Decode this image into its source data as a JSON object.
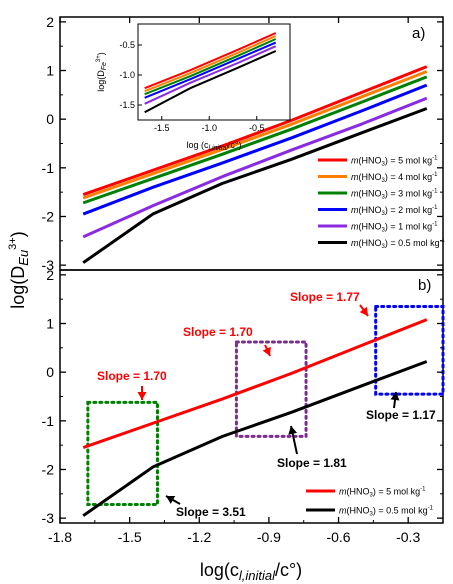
{
  "chart_data": [
    {
      "panel": "a)",
      "type": "line",
      "xlim": [
        -1.8,
        -0.15
      ],
      "ylim": [
        -3.1,
        2.1
      ],
      "yticks": [
        "-3",
        "-2",
        "-1",
        "0",
        "1",
        "2"
      ],
      "series": [
        {
          "name": "m(HNO3) = 5 mol kg-1",
          "color": "#ff0000",
          "x": [
            -1.7,
            -1.4,
            -1.1,
            -0.8,
            -0.5,
            -0.22
          ],
          "y": [
            -1.55,
            -1.05,
            -0.55,
            -0.02,
            0.55,
            1.08
          ]
        },
        {
          "name": "m(HNO3) = 4 mol kg-1",
          "color": "#ff7f00",
          "x": [
            -1.7,
            -1.4,
            -1.1,
            -0.8,
            -0.5,
            -0.22
          ],
          "y": [
            -1.62,
            -1.12,
            -0.62,
            -0.1,
            0.46,
            0.98
          ]
        },
        {
          "name": "m(HNO3) = 3 mol kg-1",
          "color": "#008000",
          "x": [
            -1.7,
            -1.4,
            -1.1,
            -0.8,
            -0.5,
            -0.22
          ],
          "y": [
            -1.72,
            -1.22,
            -0.72,
            -0.2,
            0.35,
            0.87
          ]
        },
        {
          "name": "m(HNO3) = 2 mol kg-1",
          "color": "#0000ff",
          "x": [
            -1.7,
            -1.4,
            -1.1,
            -0.8,
            -0.5,
            -0.22
          ],
          "y": [
            -1.95,
            -1.4,
            -0.9,
            -0.38,
            0.17,
            0.7
          ]
        },
        {
          "name": "m(HNO3) = 1 mol kg-1",
          "color": "#8a2be2",
          "x": [
            -1.7,
            -1.4,
            -1.1,
            -0.8,
            -0.5,
            -0.22
          ],
          "y": [
            -2.42,
            -1.78,
            -1.18,
            -0.63,
            -0.1,
            0.43
          ]
        },
        {
          "name": "m(HNO3) = 0.5 mol kg-1",
          "color": "#000000",
          "x": [
            -1.7,
            -1.4,
            -1.1,
            -0.8,
            -0.5,
            -0.22
          ],
          "y": [
            -2.95,
            -1.95,
            -1.32,
            -0.82,
            -0.28,
            0.22
          ]
        }
      ],
      "inset": {
        "xlim": [
          -1.75,
          -0.15
        ],
        "ylim": [
          -1.75,
          -0.15
        ],
        "xticks": [
          "-1.5",
          "-1.0",
          "-0.5"
        ],
        "yticks": [
          "-1.5",
          "-1.0",
          "-0.5"
        ],
        "colors": [
          "#ff0000",
          "#ff7f00",
          "#008000",
          "#0000ff",
          "#8a2be2",
          "#000000"
        ],
        "lines": [
          {
            "x": [
              -1.68,
              -1.2,
              -0.7,
              -0.3
            ],
            "y": [
              -1.22,
              -0.92,
              -0.58,
              -0.3
            ]
          },
          {
            "x": [
              -1.68,
              -1.2,
              -0.7,
              -0.3
            ],
            "y": [
              -1.27,
              -0.97,
              -0.63,
              -0.35
            ]
          },
          {
            "x": [
              -1.68,
              -1.2,
              -0.7,
              -0.3
            ],
            "y": [
              -1.32,
              -1.02,
              -0.68,
              -0.4
            ]
          },
          {
            "x": [
              -1.68,
              -1.2,
              -0.7,
              -0.3
            ],
            "y": [
              -1.38,
              -1.07,
              -0.73,
              -0.46
            ]
          },
          {
            "x": [
              -1.68,
              -1.2,
              -0.7,
              -0.3
            ],
            "y": [
              -1.48,
              -1.13,
              -0.8,
              -0.52
            ]
          },
          {
            "x": [
              -1.68,
              -1.2,
              -0.7,
              -0.3
            ],
            "y": [
              -1.62,
              -1.22,
              -0.88,
              -0.6
            ]
          }
        ]
      }
    },
    {
      "panel": "b)",
      "type": "line",
      "xlim": [
        -1.8,
        -0.15
      ],
      "ylim": [
        -3.1,
        2.1
      ],
      "xticks": [
        "-1.8",
        "-1.5",
        "-1.2",
        "-0.9",
        "-0.6",
        "-0.3"
      ],
      "yticks": [
        "-3",
        "-2",
        "-1",
        "0",
        "1",
        "2"
      ],
      "series": [
        {
          "name": "m(HNO3) = 5 mol kg-1",
          "color": "#ff0000",
          "x": [
            -1.7,
            -1.4,
            -1.1,
            -0.8,
            -0.5,
            -0.22
          ],
          "y": [
            -1.55,
            -1.05,
            -0.55,
            -0.02,
            0.55,
            1.08
          ]
        },
        {
          "name": "m(HNO3) = 0.5 mol kg-1",
          "color": "#000000",
          "x": [
            -1.7,
            -1.4,
            -1.1,
            -0.8,
            -0.5,
            -0.22
          ],
          "y": [
            -2.95,
            -1.95,
            -1.32,
            -0.82,
            -0.28,
            0.22
          ]
        }
      ],
      "annotations": [
        {
          "text": "Slope = 1.77",
          "color": "#ff0000"
        },
        {
          "text": "Slope = 1.70",
          "color": "#ff0000"
        },
        {
          "text": "Slope = 1.70",
          "color": "#ff0000"
        },
        {
          "text": "Slope = 1.17",
          "color": "#000000"
        },
        {
          "text": "Slope = 1.81",
          "color": "#000000"
        },
        {
          "text": "Slope = 3.51",
          "color": "#000000"
        }
      ],
      "boxes": [
        {
          "color": "#008000",
          "x": [
            -1.68,
            -1.38
          ],
          "y": [
            -2.72,
            -0.62
          ]
        },
        {
          "color": "#7b2d8e",
          "x": [
            -1.04,
            -0.74
          ],
          "y": [
            -1.32,
            0.62
          ]
        },
        {
          "color": "#0000ff",
          "x": [
            -0.44,
            -0.15
          ],
          "y": [
            -0.45,
            1.35
          ]
        }
      ]
    }
  ],
  "labels": {
    "panel_a": "a)",
    "panel_b": "b)",
    "y_axis_main": "log(D",
    "y_axis_main_sub": "Eu",
    "y_axis_main_sup": "3+",
    "x_axis_main": "log(c",
    "x_axis_main_sub": "l,initial",
    "x_axis_main_tail": "/c°)",
    "inset_y": "log(D",
    "inset_y_sub": "Fe",
    "inset_y_sup": "3+",
    "inset_x": "log (c",
    "inset_x_sub": "l,initial",
    "inset_x_tail": "/c°)"
  },
  "legend_a": [
    {
      "pre": "m",
      "mid": "(HNO",
      "sub": "3",
      "post": ") = 5 mol kg",
      "sup": "-1",
      "color": "#ff0000"
    },
    {
      "pre": "m",
      "mid": "(HNO",
      "sub": "3",
      "post": ") = 4 mol kg",
      "sup": "-1",
      "color": "#ff7f00"
    },
    {
      "pre": "m",
      "mid": "(HNO",
      "sub": "3",
      "post": ") = 3 mol kg",
      "sup": "-1",
      "color": "#008000"
    },
    {
      "pre": "m",
      "mid": "(HNO",
      "sub": "3",
      "post": ") = 2 mol kg",
      "sup": "-1",
      "color": "#0000ff"
    },
    {
      "pre": "m",
      "mid": "(HNO",
      "sub": "3",
      "post": ") = 1 mol kg",
      "sup": "-1",
      "color": "#8a2be2"
    },
    {
      "pre": "m",
      "mid": "(HNO",
      "sub": "3",
      "post": ") = 0.5 mol kg",
      "sup": "-1",
      "color": "#000000"
    }
  ],
  "legend_b": [
    {
      "pre": "m",
      "mid": "(HNO",
      "sub": "3",
      "post": ") = 5 mol kg",
      "sup": "-1",
      "color": "#ff0000"
    },
    {
      "pre": "m",
      "mid": "(HNO",
      "sub": "3",
      "post": ") = 0.5 mol kg",
      "sup": "-1",
      "color": "#000000"
    }
  ]
}
